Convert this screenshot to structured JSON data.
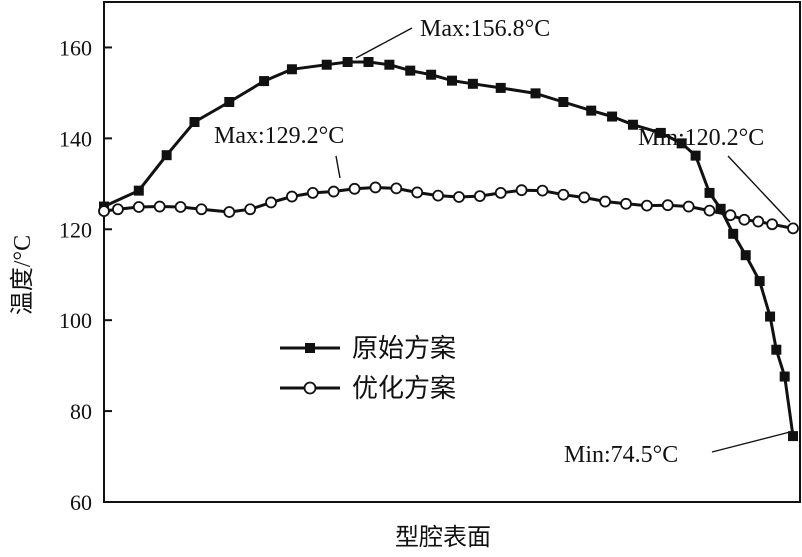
{
  "chart_data": {
    "type": "line",
    "title": "",
    "xlabel": "型腔表面",
    "ylabel": "温度/°C",
    "ylim": [
      60,
      170
    ],
    "yticks": [
      60,
      80,
      100,
      120,
      140,
      160
    ],
    "grid": false,
    "legend_position": "center-left",
    "series": [
      {
        "name": "原始方案",
        "marker": "filled-square",
        "color": "#111111",
        "x": [
          0,
          5,
          9,
          13,
          18,
          23,
          27,
          32,
          35,
          38,
          41,
          44,
          47,
          50,
          53,
          57,
          62,
          66,
          70,
          73,
          76,
          80,
          83,
          85,
          87,
          88.6,
          90.4,
          92.2,
          94.2,
          95.7,
          96.6,
          97.8,
          99
        ],
        "values": [
          125.0,
          128.5,
          136.3,
          143.6,
          148.0,
          152.6,
          155.2,
          156.2,
          156.8,
          156.8,
          156.2,
          154.9,
          154.0,
          152.7,
          152.0,
          151.1,
          149.9,
          148.0,
          146.1,
          144.8,
          143.0,
          141.2,
          138.9,
          136.2,
          128.0,
          124.5,
          119.0,
          114.3,
          108.6,
          100.8,
          93.5,
          87.6,
          74.5
        ]
      },
      {
        "name": "优化方案",
        "marker": "open-circle",
        "color": "#111111",
        "x": [
          0,
          2,
          5,
          8,
          11,
          14,
          18,
          21,
          24,
          27,
          30,
          33,
          36,
          39,
          42,
          45,
          48,
          51,
          54,
          57,
          60,
          63,
          66,
          69,
          72,
          75,
          78,
          81,
          84,
          87,
          90,
          92,
          94,
          96,
          99
        ],
        "values": [
          124.0,
          124.4,
          124.9,
          125.0,
          124.9,
          124.4,
          123.8,
          124.4,
          125.9,
          127.2,
          128.0,
          128.3,
          128.9,
          129.2,
          129.0,
          128.1,
          127.4,
          127.1,
          127.3,
          128.0,
          128.6,
          128.5,
          127.6,
          127.0,
          126.1,
          125.6,
          125.2,
          125.3,
          125.0,
          124.1,
          123.1,
          122.1,
          121.7,
          121.1,
          120.2
        ]
      }
    ],
    "annotations": [
      {
        "text": "Max:156.8°C",
        "series": 0,
        "point_x": 38,
        "point_y": 156.8
      },
      {
        "text": "Max:129.2°C",
        "series": 1,
        "point_x": 39,
        "point_y": 129.2
      },
      {
        "text": "Min:120.2°C",
        "series": 1,
        "point_x": 99,
        "point_y": 120.2
      },
      {
        "text": "Min:74.5°C",
        "series": 0,
        "point_x": 99,
        "point_y": 74.5
      }
    ]
  }
}
